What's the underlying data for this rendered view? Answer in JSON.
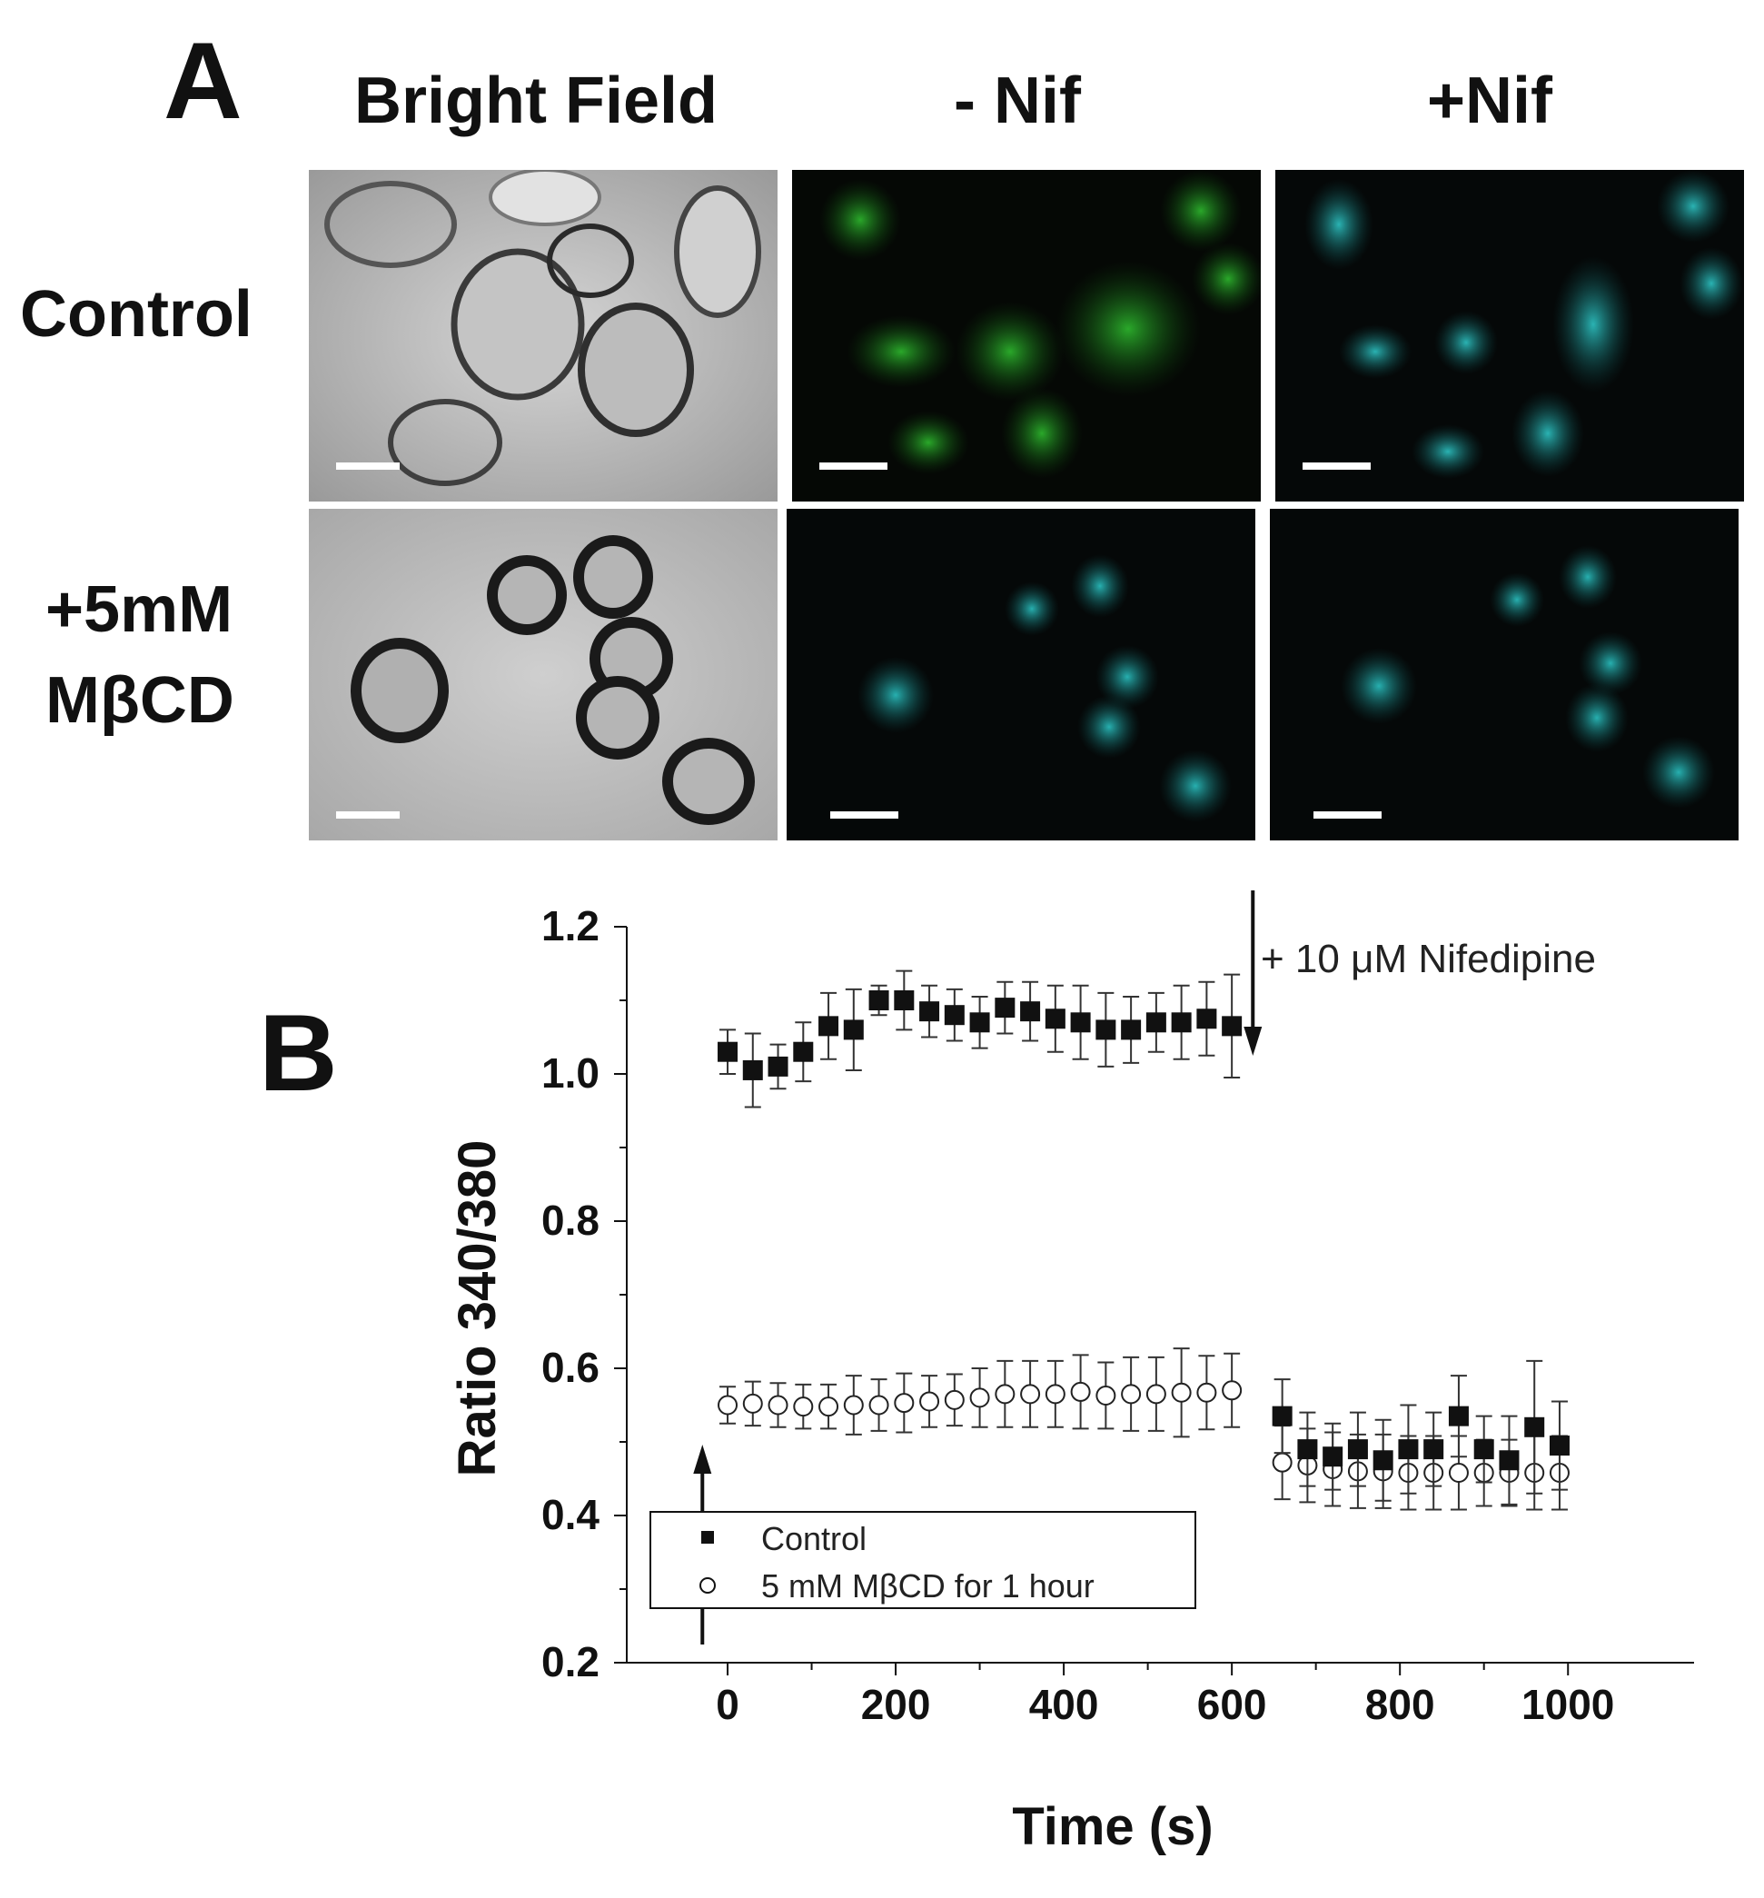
{
  "figure": {
    "panel_a_letter": "A",
    "panel_b_letter": "B",
    "column_headers": [
      "Bright Field",
      "- Nif",
      "+Nif"
    ],
    "row_labels": [
      "Control",
      "+5mM",
      "MβCD"
    ]
  },
  "colors": {
    "green_fluor": "#1f9a1f",
    "cyan_fluor": "#1fa8a8",
    "panel_bg": "#050805",
    "bright_field": "#bdbdbd"
  },
  "chart_data": {
    "type": "scatter",
    "xlabel": "Time (s)",
    "ylabel": "Ratio 340/380",
    "xlim": [
      -120,
      1150
    ],
    "ylim": [
      0.2,
      1.2
    ],
    "x_ticks": [
      0,
      200,
      400,
      600,
      800,
      1000
    ],
    "y_ticks": [
      0.2,
      0.4,
      0.6,
      0.8,
      1.0,
      1.2
    ],
    "x_tick_labels": [
      "0",
      "200",
      "400",
      "600",
      "800",
      "1000"
    ],
    "y_tick_labels": [
      "0.2",
      "0.4",
      "0.6",
      "0.8",
      "1.0",
      "1.2"
    ],
    "annotation": "+ 10 μM Nifedipine",
    "annotation_time": 625,
    "legend_position": "bottom-left",
    "series": [
      {
        "name": "Control",
        "marker": "filled-square",
        "x": [
          0,
          30,
          60,
          90,
          120,
          150,
          180,
          210,
          240,
          270,
          300,
          330,
          360,
          390,
          420,
          450,
          480,
          510,
          540,
          570,
          600,
          660,
          690,
          720,
          750,
          780,
          810,
          840,
          870,
          900,
          930,
          960,
          990
        ],
        "y": [
          1.03,
          1.005,
          1.01,
          1.03,
          1.065,
          1.06,
          1.1,
          1.1,
          1.085,
          1.08,
          1.07,
          1.09,
          1.085,
          1.075,
          1.07,
          1.06,
          1.06,
          1.07,
          1.07,
          1.075,
          1.065,
          0.535,
          0.49,
          0.48,
          0.49,
          0.475,
          0.49,
          0.49,
          0.535,
          0.49,
          0.475,
          0.52,
          0.495
        ],
        "err": [
          0.03,
          0.05,
          0.03,
          0.04,
          0.045,
          0.055,
          0.02,
          0.04,
          0.035,
          0.035,
          0.035,
          0.035,
          0.04,
          0.045,
          0.05,
          0.05,
          0.045,
          0.04,
          0.05,
          0.05,
          0.07,
          0.05,
          0.05,
          0.045,
          0.05,
          0.055,
          0.06,
          0.05,
          0.055,
          0.045,
          0.06,
          0.09,
          0.06
        ]
      },
      {
        "name": "5 mM MβCD for 1 hour",
        "marker": "open-circle",
        "x": [
          0,
          30,
          60,
          90,
          120,
          150,
          180,
          210,
          240,
          270,
          300,
          330,
          360,
          390,
          420,
          450,
          480,
          510,
          540,
          570,
          600,
          660,
          690,
          720,
          750,
          780,
          810,
          840,
          870,
          900,
          930,
          960,
          990
        ],
        "y": [
          0.55,
          0.552,
          0.55,
          0.548,
          0.548,
          0.55,
          0.55,
          0.553,
          0.555,
          0.557,
          0.56,
          0.565,
          0.565,
          0.565,
          0.568,
          0.563,
          0.565,
          0.565,
          0.567,
          0.567,
          0.57,
          0.472,
          0.468,
          0.463,
          0.46,
          0.46,
          0.458,
          0.458,
          0.458,
          0.458,
          0.458,
          0.458,
          0.458
        ],
        "err": [
          0.025,
          0.03,
          0.03,
          0.03,
          0.03,
          0.04,
          0.035,
          0.04,
          0.035,
          0.035,
          0.04,
          0.045,
          0.045,
          0.045,
          0.05,
          0.045,
          0.05,
          0.05,
          0.06,
          0.05,
          0.05,
          0.05,
          0.05,
          0.05,
          0.05,
          0.05,
          0.05,
          0.05,
          0.05,
          0.045,
          0.045,
          0.05,
          0.05
        ]
      }
    ]
  }
}
